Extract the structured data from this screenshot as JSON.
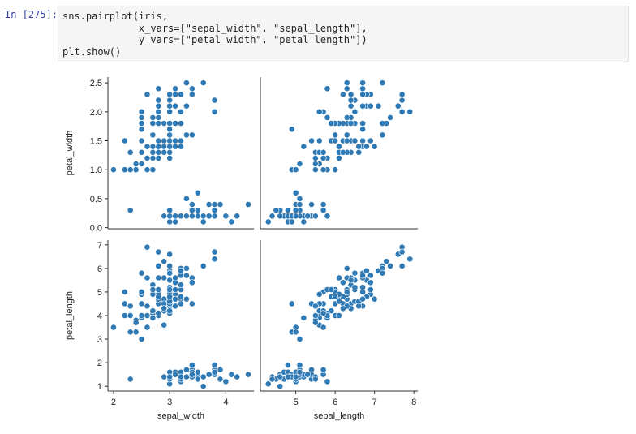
{
  "notebook": {
    "prompt": "In [275]:",
    "code_lines": [
      "sns.pairplot(iris,",
      "             x_vars=[\"sepal_width\", \"sepal_length\"],",
      "             y_vars=[\"petal_width\", \"petal_length\"])",
      "plt.show()"
    ]
  },
  "colors": {
    "marker": "#2f7ab5",
    "marker_edge": "#ffffff",
    "axis": "#333333"
  },
  "chart_data": {
    "type": "scatter",
    "layout": "pairplot grid 2x2",
    "x_vars": [
      "sepal_width",
      "sepal_length"
    ],
    "y_vars": [
      "petal_width",
      "petal_length"
    ],
    "axes": {
      "sepal_width": {
        "label": "sepal_width",
        "range": [
          1.9,
          4.5
        ],
        "ticks": [
          2,
          3,
          4
        ],
        "tick_labels": [
          "2",
          "3",
          "4"
        ]
      },
      "sepal_length": {
        "label": "sepal_length",
        "range": [
          4.1,
          8.1
        ],
        "ticks": [
          5,
          6,
          7,
          8
        ],
        "tick_labels": [
          "5",
          "6",
          "7",
          "8"
        ]
      },
      "petal_width": {
        "label": "petal_width",
        "range": [
          -0.02,
          2.6
        ],
        "ticks": [
          0,
          0.5,
          1,
          1.5,
          2,
          2.5
        ],
        "tick_labels": [
          "0.0",
          "0.5",
          "1.0",
          "1.5",
          "2.0",
          "2.5"
        ]
      },
      "petal_length": {
        "label": "petal_length",
        "range": [
          0.8,
          7.2
        ],
        "ticks": [
          1,
          2,
          3,
          4,
          5,
          6,
          7
        ],
        "tick_labels": [
          "1",
          "2",
          "3",
          "4",
          "5",
          "6",
          "7"
        ]
      }
    },
    "data": {
      "sepal_length": [
        5.1,
        4.9,
        4.7,
        4.6,
        5.0,
        5.4,
        4.6,
        5.0,
        4.4,
        4.9,
        5.4,
        4.8,
        4.8,
        4.3,
        5.8,
        5.7,
        5.4,
        5.1,
        5.7,
        5.1,
        5.4,
        5.1,
        4.6,
        5.1,
        4.8,
        5.0,
        5.0,
        5.2,
        5.2,
        4.7,
        4.8,
        5.4,
        5.2,
        5.5,
        4.9,
        5.0,
        5.5,
        4.9,
        4.4,
        5.1,
        5.0,
        4.5,
        4.4,
        5.0,
        5.1,
        4.8,
        5.1,
        4.6,
        5.3,
        5.0,
        7.0,
        6.4,
        6.9,
        5.5,
        6.5,
        5.7,
        6.3,
        4.9,
        6.6,
        5.2,
        5.0,
        5.9,
        6.0,
        6.1,
        5.6,
        6.7,
        5.6,
        5.8,
        6.2,
        5.6,
        5.9,
        6.1,
        6.3,
        6.1,
        6.4,
        6.6,
        6.8,
        6.7,
        6.0,
        5.7,
        5.5,
        5.5,
        5.8,
        6.0,
        5.4,
        6.0,
        6.7,
        6.3,
        5.6,
        5.5,
        5.5,
        6.1,
        5.8,
        5.0,
        5.6,
        5.7,
        5.7,
        6.2,
        5.1,
        5.7,
        6.3,
        5.8,
        7.1,
        6.3,
        6.5,
        7.6,
        4.9,
        7.3,
        6.7,
        7.2,
        6.5,
        6.4,
        6.8,
        5.7,
        5.8,
        6.4,
        6.5,
        7.7,
        7.7,
        6.0,
        6.9,
        5.6,
        7.7,
        6.3,
        6.7,
        7.2,
        6.2,
        6.1,
        6.4,
        7.2,
        7.4,
        7.9,
        6.4,
        6.3,
        6.1,
        7.7,
        6.3,
        6.4,
        6.0,
        6.9,
        6.7,
        6.9,
        5.8,
        6.8,
        6.7,
        6.7,
        6.3,
        6.5,
        6.2,
        5.9
      ],
      "sepal_width": [
        3.5,
        3.0,
        3.2,
        3.1,
        3.6,
        3.9,
        3.4,
        3.4,
        2.9,
        3.1,
        3.7,
        3.4,
        3.0,
        3.0,
        4.0,
        4.4,
        3.9,
        3.5,
        3.8,
        3.8,
        3.4,
        3.7,
        3.6,
        3.3,
        3.4,
        3.0,
        3.4,
        3.5,
        3.4,
        3.2,
        3.1,
        3.4,
        4.1,
        4.2,
        3.1,
        3.2,
        3.5,
        3.6,
        3.0,
        3.4,
        3.5,
        2.3,
        3.2,
        3.5,
        3.8,
        3.0,
        3.8,
        3.2,
        3.7,
        3.3,
        3.2,
        3.2,
        3.1,
        2.3,
        2.8,
        2.8,
        3.3,
        2.4,
        2.9,
        2.7,
        2.0,
        3.0,
        2.2,
        2.9,
        2.9,
        3.1,
        3.0,
        2.7,
        2.2,
        2.5,
        3.2,
        2.8,
        2.5,
        2.8,
        2.9,
        3.0,
        2.8,
        3.0,
        2.9,
        2.6,
        2.4,
        2.4,
        2.7,
        2.7,
        3.0,
        3.4,
        3.1,
        2.3,
        3.0,
        2.5,
        2.6,
        3.0,
        2.6,
        2.3,
        2.7,
        3.0,
        2.9,
        2.9,
        2.5,
        2.8,
        3.3,
        2.7,
        3.0,
        2.9,
        3.0,
        3.0,
        2.5,
        2.9,
        2.5,
        3.6,
        3.2,
        2.7,
        3.0,
        2.5,
        2.8,
        3.2,
        3.0,
        3.8,
        2.6,
        2.2,
        3.2,
        2.8,
        2.8,
        2.7,
        3.3,
        3.2,
        2.8,
        3.0,
        2.8,
        3.0,
        2.8,
        3.8,
        2.8,
        2.8,
        2.6,
        3.0,
        3.4,
        3.1,
        3.0,
        3.1,
        3.1,
        3.1,
        2.7,
        3.2,
        3.3,
        3.0,
        2.5,
        3.0,
        3.4,
        3.0
      ],
      "petal_length": [
        1.4,
        1.4,
        1.3,
        1.5,
        1.4,
        1.7,
        1.4,
        1.5,
        1.4,
        1.5,
        1.5,
        1.6,
        1.4,
        1.1,
        1.2,
        1.5,
        1.3,
        1.4,
        1.7,
        1.5,
        1.7,
        1.5,
        1.0,
        1.7,
        1.9,
        1.6,
        1.6,
        1.5,
        1.4,
        1.6,
        1.6,
        1.5,
        1.5,
        1.4,
        1.5,
        1.2,
        1.3,
        1.4,
        1.3,
        1.5,
        1.3,
        1.3,
        1.3,
        1.6,
        1.9,
        1.4,
        1.6,
        1.4,
        1.5,
        1.4,
        4.7,
        4.5,
        4.9,
        4.0,
        4.6,
        4.5,
        4.7,
        3.3,
        4.6,
        3.9,
        3.5,
        4.2,
        4.0,
        4.7,
        3.6,
        4.4,
        4.5,
        4.1,
        4.5,
        3.9,
        4.8,
        4.0,
        4.9,
        4.7,
        4.3,
        4.4,
        4.8,
        5.0,
        4.5,
        3.5,
        3.8,
        3.7,
        3.9,
        5.1,
        4.5,
        4.5,
        4.7,
        4.4,
        4.1,
        4.0,
        4.4,
        4.6,
        4.0,
        3.3,
        4.2,
        4.2,
        4.2,
        4.3,
        3.0,
        4.1,
        6.0,
        5.1,
        5.9,
        5.6,
        5.8,
        6.6,
        4.5,
        6.3,
        5.8,
        6.1,
        5.1,
        5.3,
        5.5,
        5.0,
        5.1,
        5.3,
        5.5,
        6.7,
        6.9,
        5.0,
        5.7,
        4.9,
        6.7,
        4.9,
        5.7,
        6.0,
        4.8,
        4.9,
        5.6,
        5.8,
        6.1,
        6.4,
        5.6,
        5.1,
        5.6,
        6.1,
        5.6,
        5.5,
        4.8,
        5.4,
        5.6,
        5.1,
        5.1,
        5.9,
        5.7,
        5.2,
        5.0,
        5.2,
        5.4,
        5.1
      ],
      "petal_width": [
        0.2,
        0.2,
        0.2,
        0.2,
        0.2,
        0.4,
        0.3,
        0.2,
        0.2,
        0.1,
        0.2,
        0.2,
        0.1,
        0.1,
        0.2,
        0.4,
        0.4,
        0.3,
        0.3,
        0.3,
        0.2,
        0.4,
        0.2,
        0.5,
        0.2,
        0.2,
        0.4,
        0.2,
        0.2,
        0.2,
        0.2,
        0.4,
        0.1,
        0.2,
        0.2,
        0.2,
        0.2,
        0.1,
        0.2,
        0.2,
        0.3,
        0.3,
        0.2,
        0.6,
        0.4,
        0.3,
        0.2,
        0.2,
        0.2,
        0.2,
        1.4,
        1.5,
        1.5,
        1.3,
        1.5,
        1.3,
        1.6,
        1.0,
        1.3,
        1.4,
        1.0,
        1.5,
        1.0,
        1.4,
        1.3,
        1.4,
        1.5,
        1.0,
        1.5,
        1.1,
        1.8,
        1.3,
        1.5,
        1.2,
        1.3,
        1.4,
        1.4,
        1.7,
        1.5,
        1.0,
        1.1,
        1.0,
        1.2,
        1.6,
        1.5,
        1.6,
        1.5,
        1.3,
        1.3,
        1.3,
        1.2,
        1.4,
        1.2,
        1.0,
        1.3,
        1.2,
        1.3,
        1.3,
        1.1,
        1.3,
        2.5,
        1.9,
        2.1,
        1.8,
        2.2,
        2.1,
        1.7,
        1.8,
        1.8,
        2.5,
        2.0,
        1.9,
        2.1,
        2.0,
        2.4,
        2.3,
        1.8,
        2.2,
        2.3,
        1.5,
        2.3,
        2.0,
        2.0,
        1.8,
        2.1,
        1.8,
        1.8,
        1.8,
        2.1,
        1.6,
        1.9,
        2.0,
        2.2,
        1.5,
        1.4,
        2.3,
        2.4,
        1.8,
        1.8,
        2.1,
        2.4,
        2.3,
        1.9,
        2.3,
        2.5,
        2.3,
        1.9,
        2.0,
        2.3,
        1.8
      ]
    }
  }
}
